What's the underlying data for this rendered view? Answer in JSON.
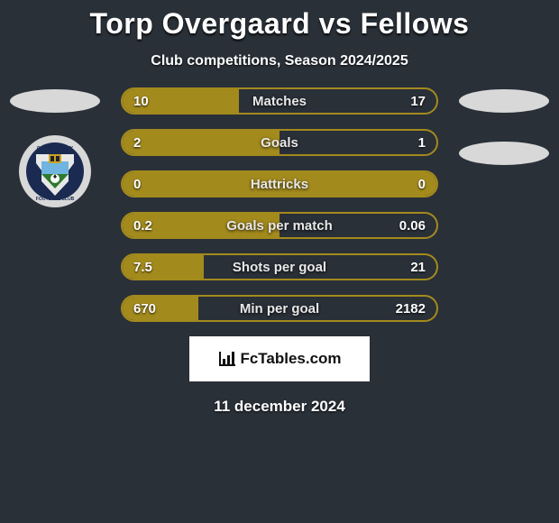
{
  "title": "Torp Overgaard vs Fellows",
  "subtitle": "Club competitions, Season 2024/2025",
  "date": "11 december 2024",
  "watermark": "FcTables.com",
  "chart": {
    "type": "bar",
    "bar_border_color": "#a38a1d",
    "bar_fill_color": "#a38a1d",
    "background_color": "#2a3038",
    "text_color": "#ffffff",
    "label_fontsize": 15,
    "value_fontsize": 15,
    "title_fontsize": 32
  },
  "rows": [
    {
      "label": "Matches",
      "left_val": "10",
      "right_val": "17",
      "left_pct": 37,
      "right_pct": 0
    },
    {
      "label": "Goals",
      "left_val": "2",
      "right_val": "1",
      "left_pct": 50,
      "right_pct": 0
    },
    {
      "label": "Hattricks",
      "left_val": "0",
      "right_val": "0",
      "left_pct": 50,
      "right_pct": 50
    },
    {
      "label": "Goals per match",
      "left_val": "0.2",
      "right_val": "0.06",
      "left_pct": 50,
      "right_pct": 0
    },
    {
      "label": "Shots per goal",
      "left_val": "7.5",
      "right_val": "21",
      "left_pct": 26,
      "right_pct": 0
    },
    {
      "label": "Min per goal",
      "left_val": "670",
      "right_val": "2182",
      "left_pct": 24,
      "right_pct": 0
    }
  ],
  "crest_colors": {
    "ring": "#d8d8d8",
    "ring_inner": "#1a2a50",
    "shield_top": "#e8e8e8",
    "shield_mid": "#6fb5e0",
    "grass": "#2e7a2e",
    "ball": "#ffffff"
  }
}
